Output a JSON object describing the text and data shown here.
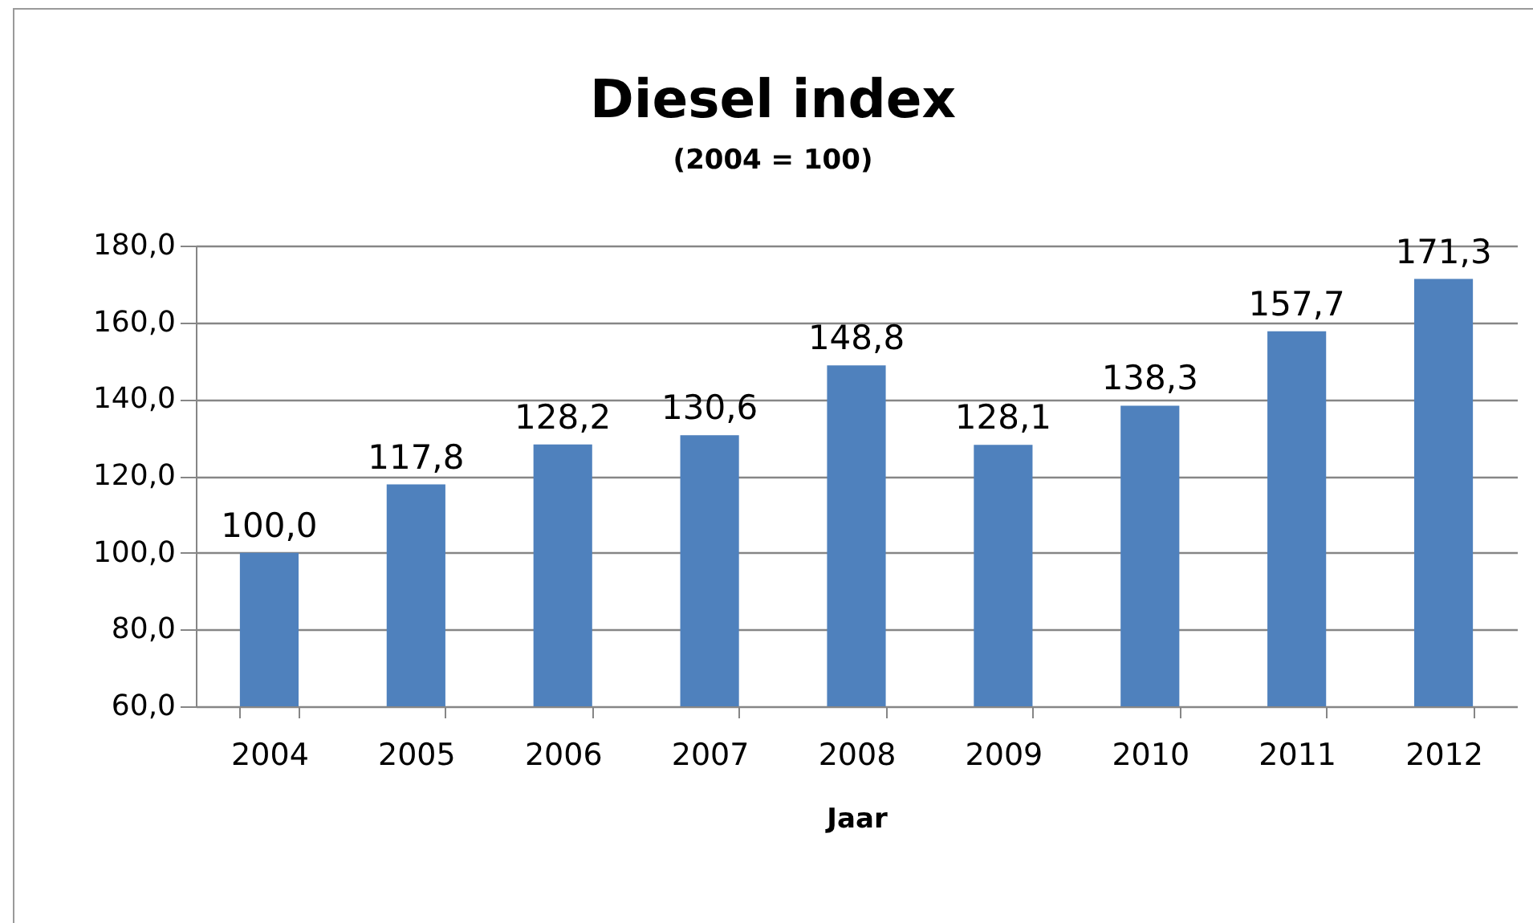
{
  "chart_data": {
    "type": "bar",
    "title": "Diesel index",
    "subtitle": "(2004 = 100)",
    "xlabel": "Jaar",
    "categories": [
      "2004",
      "2005",
      "2006",
      "2007",
      "2008",
      "2009",
      "2010",
      "2011",
      "2012"
    ],
    "values": [
      100.0,
      117.8,
      128.2,
      130.6,
      148.8,
      128.1,
      138.3,
      157.7,
      171.3
    ],
    "value_labels": [
      "100,0",
      "117,8",
      "128,2",
      "130,6",
      "148,8",
      "128,1",
      "138,3",
      "157,7",
      "171,3"
    ],
    "color": "#4f81bd",
    "ylim": [
      60,
      180
    ],
    "yticks": [
      {
        "value": 60,
        "label": "60,0"
      },
      {
        "value": 80,
        "label": "80,0"
      },
      {
        "value": 100,
        "label": "100,0"
      },
      {
        "value": 120,
        "label": "120,0"
      },
      {
        "value": 140,
        "label": "140,0"
      },
      {
        "value": 160,
        "label": "160,0"
      },
      {
        "value": 180,
        "label": "180,0"
      }
    ],
    "grid": "y"
  }
}
